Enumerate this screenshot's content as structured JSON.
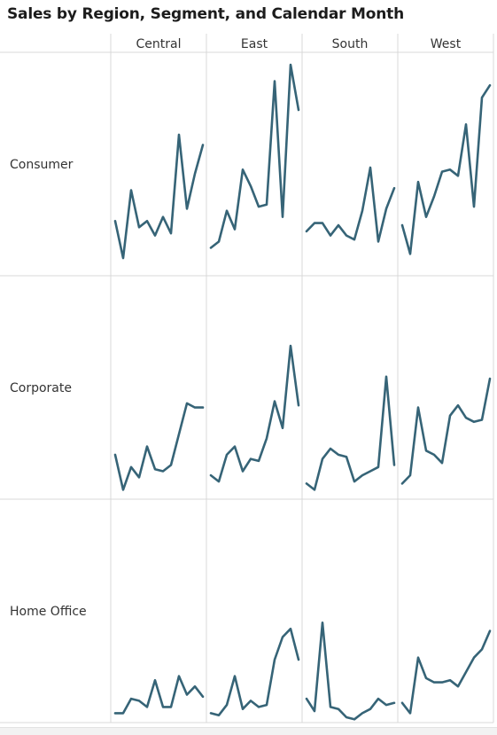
{
  "chart_data": {
    "type": "line",
    "title": "Sales by Region, Segment, and Calendar Month",
    "columns": [
      "Central",
      "East",
      "South",
      "West"
    ],
    "rows": [
      "Consumer",
      "Corporate",
      "Home Office"
    ],
    "x": [
      1,
      2,
      3,
      4,
      5,
      6,
      7,
      8,
      9,
      10,
      11,
      12
    ],
    "ylim": [
      0,
      100
    ],
    "line_color": "#366477",
    "panels": [
      [
        {
          "column": "Central",
          "values": [
            24,
            6,
            39,
            21,
            24,
            17,
            26,
            18,
            66,
            30,
            47,
            61
          ]
        },
        {
          "column": "East",
          "values": [
            11,
            14,
            29,
            20,
            49,
            41,
            31,
            32,
            92,
            26,
            100,
            78
          ]
        },
        {
          "column": "South",
          "values": [
            19,
            23,
            23,
            17,
            22,
            17,
            15,
            29,
            50,
            14,
            30,
            40
          ]
        },
        {
          "column": "West",
          "values": [
            22,
            8,
            43,
            26,
            36,
            48,
            49,
            46,
            71,
            31,
            84,
            90
          ]
        }
      ],
      [
        {
          "column": "Central",
          "values": [
            19,
            2,
            13,
            8,
            23,
            12,
            11,
            14,
            29,
            44,
            42,
            42
          ]
        },
        {
          "column": "East",
          "values": [
            9,
            6,
            19,
            23,
            11,
            17,
            16,
            27,
            45,
            32,
            72,
            43
          ]
        },
        {
          "column": "South",
          "values": [
            5,
            2,
            17,
            22,
            19,
            18,
            6,
            9,
            11,
            13,
            57,
            14
          ]
        },
        {
          "column": "West",
          "values": [
            5,
            9,
            42,
            21,
            19,
            15,
            38,
            43,
            37,
            35,
            36,
            56
          ]
        }
      ],
      [
        {
          "column": "Central",
          "values": [
            2,
            2,
            9,
            8,
            5,
            18,
            5,
            5,
            20,
            11,
            15,
            10
          ]
        },
        {
          "column": "East",
          "values": [
            2,
            1,
            6,
            20,
            4,
            8,
            5,
            6,
            28,
            39,
            43,
            28
          ]
        },
        {
          "column": "South",
          "values": [
            9,
            3,
            46,
            5,
            4,
            0,
            -1,
            2,
            4,
            9,
            6,
            7
          ]
        },
        {
          "column": "West",
          "values": [
            7,
            2,
            29,
            19,
            17,
            17,
            18,
            15,
            22,
            29,
            33,
            42
          ]
        }
      ]
    ]
  }
}
